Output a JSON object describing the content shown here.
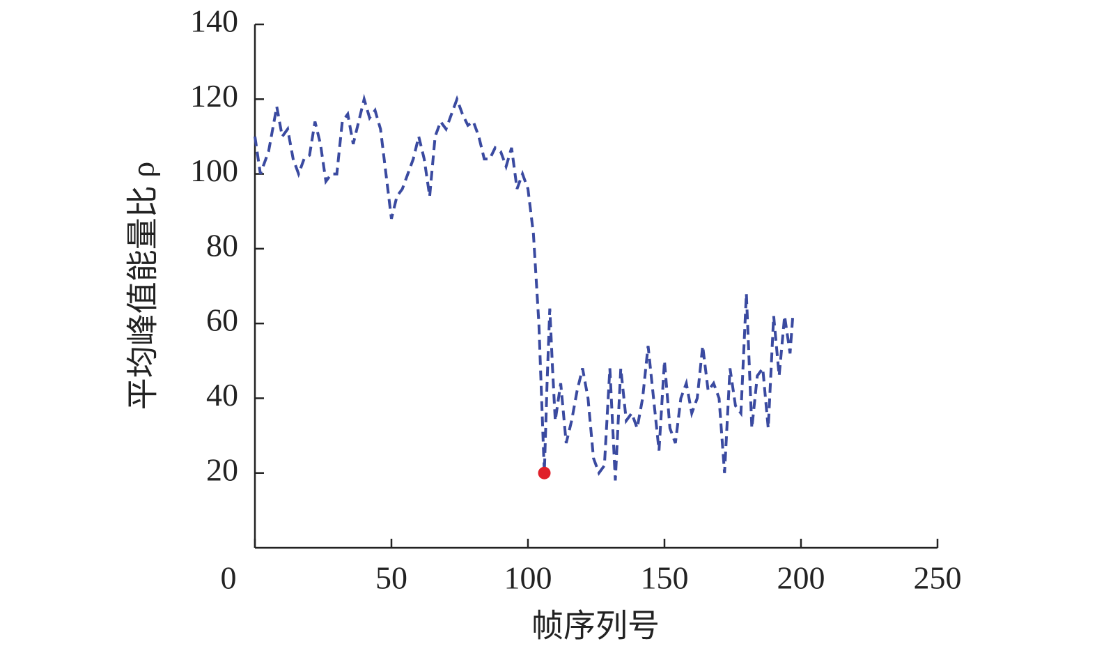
{
  "chart_data": {
    "type": "line",
    "xlabel": "帧序列号",
    "ylabel": "平均峰值能量比 ρ",
    "xlim": [
      0,
      250
    ],
    "xticks": [
      0,
      50,
      100,
      150,
      200,
      250
    ],
    "ylim": [
      0,
      140
    ],
    "yticks": [
      20,
      40,
      60,
      80,
      100,
      120,
      140
    ],
    "series": [
      {
        "color": "#3a4aa0",
        "dashed": true,
        "x": [
          0,
          2,
          5,
          8,
          10,
          12,
          14,
          16,
          18,
          20,
          22,
          24,
          26,
          28,
          30,
          32,
          34,
          36,
          38,
          40,
          42,
          44,
          46,
          48,
          50,
          52,
          54,
          56,
          58,
          60,
          62,
          64,
          66,
          68,
          70,
          72,
          74,
          76,
          78,
          80,
          82,
          84,
          86,
          88,
          90,
          92,
          94,
          96,
          98,
          100,
          102,
          104,
          105,
          106,
          107,
          108,
          109,
          110,
          112,
          114,
          116,
          118,
          120,
          122,
          124,
          126,
          128,
          130,
          132,
          134,
          136,
          138,
          140,
          142,
          144,
          146,
          148,
          150,
          152,
          154,
          156,
          158,
          160,
          162,
          164,
          166,
          168,
          170,
          172,
          174,
          176,
          178,
          180,
          182,
          184,
          186,
          188,
          190,
          192,
          194,
          196,
          197
        ],
        "values": [
          110,
          100,
          106,
          118,
          110,
          112,
          104,
          100,
          104,
          105,
          114,
          108,
          98,
          100,
          100,
          114,
          116,
          108,
          114,
          120,
          115,
          117,
          112,
          100,
          88,
          94,
          96,
          100,
          104,
          110,
          104,
          94,
          110,
          114,
          112,
          116,
          120,
          116,
          113,
          114,
          110,
          104,
          104,
          107,
          106,
          102,
          107,
          96,
          100,
          96,
          84,
          60,
          40,
          20,
          44,
          64,
          48,
          34,
          44,
          28,
          34,
          42,
          48,
          40,
          24,
          20,
          22,
          48,
          18,
          48,
          34,
          36,
          32,
          40,
          54,
          40,
          26,
          50,
          32,
          28,
          40,
          44,
          36,
          40,
          54,
          42,
          44,
          40,
          20,
          48,
          38,
          36,
          68,
          32,
          46,
          48,
          32,
          62,
          46,
          62,
          52,
          62
        ]
      }
    ],
    "highlight": {
      "x": 106,
      "y": 20,
      "color": "#e0202a"
    }
  }
}
